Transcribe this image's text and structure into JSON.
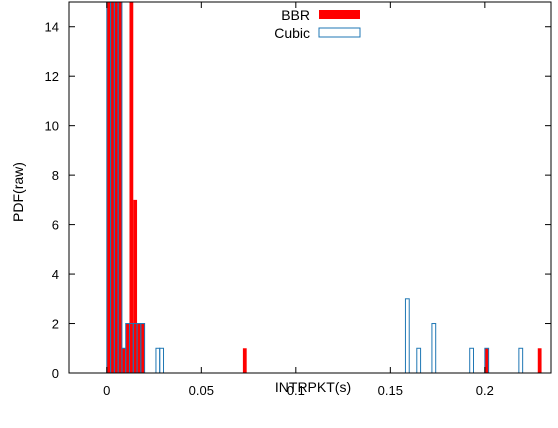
{
  "chart_data": {
    "type": "bar",
    "title": "",
    "xlabel": "INTRPKT(s)",
    "ylabel": "PDF(raw)",
    "xlim": [
      -0.02,
      0.235
    ],
    "ylim": [
      0,
      15
    ],
    "grid": false,
    "legend_position": "top-center",
    "bin_width": 0.002,
    "x_ticks": [
      0,
      0.05,
      0.1,
      0.15,
      0.2
    ],
    "x_tick_labels": [
      "0",
      "0.05",
      "0.1",
      "0.15",
      "0.2"
    ],
    "y_ticks": [
      0,
      2,
      4,
      6,
      8,
      10,
      12,
      14
    ],
    "y_tick_labels": [
      "0",
      "2",
      "4",
      "6",
      "8",
      "10",
      "12",
      "14"
    ],
    "series": [
      {
        "name": "BBR",
        "style": "filled",
        "color": "#ff0000",
        "bins": [
          {
            "x": 0.0,
            "y": 15
          },
          {
            "x": 0.002,
            "y": 15
          },
          {
            "x": 0.004,
            "y": 15
          },
          {
            "x": 0.006,
            "y": 15
          },
          {
            "x": 0.008,
            "y": 1
          },
          {
            "x": 0.01,
            "y": 2
          },
          {
            "x": 0.012,
            "y": 15
          },
          {
            "x": 0.014,
            "y": 7
          },
          {
            "x": 0.016,
            "y": 2
          },
          {
            "x": 0.018,
            "y": 2
          },
          {
            "x": 0.072,
            "y": 1
          },
          {
            "x": 0.2,
            "y": 1
          },
          {
            "x": 0.228,
            "y": 1
          }
        ]
      },
      {
        "name": "Cubic",
        "style": "outline",
        "color": "#1f77b4",
        "bins": [
          {
            "x": 0.0,
            "y": 15
          },
          {
            "x": 0.002,
            "y": 15
          },
          {
            "x": 0.004,
            "y": 15
          },
          {
            "x": 0.006,
            "y": 15
          },
          {
            "x": 0.008,
            "y": 1
          },
          {
            "x": 0.01,
            "y": 2
          },
          {
            "x": 0.012,
            "y": 2
          },
          {
            "x": 0.014,
            "y": 2
          },
          {
            "x": 0.016,
            "y": 2
          },
          {
            "x": 0.018,
            "y": 2
          },
          {
            "x": 0.026,
            "y": 1
          },
          {
            "x": 0.028,
            "y": 1
          },
          {
            "x": 0.158,
            "y": 3
          },
          {
            "x": 0.164,
            "y": 1
          },
          {
            "x": 0.172,
            "y": 2
          },
          {
            "x": 0.192,
            "y": 1
          },
          {
            "x": 0.2,
            "y": 1
          },
          {
            "x": 0.218,
            "y": 1
          }
        ]
      }
    ]
  }
}
